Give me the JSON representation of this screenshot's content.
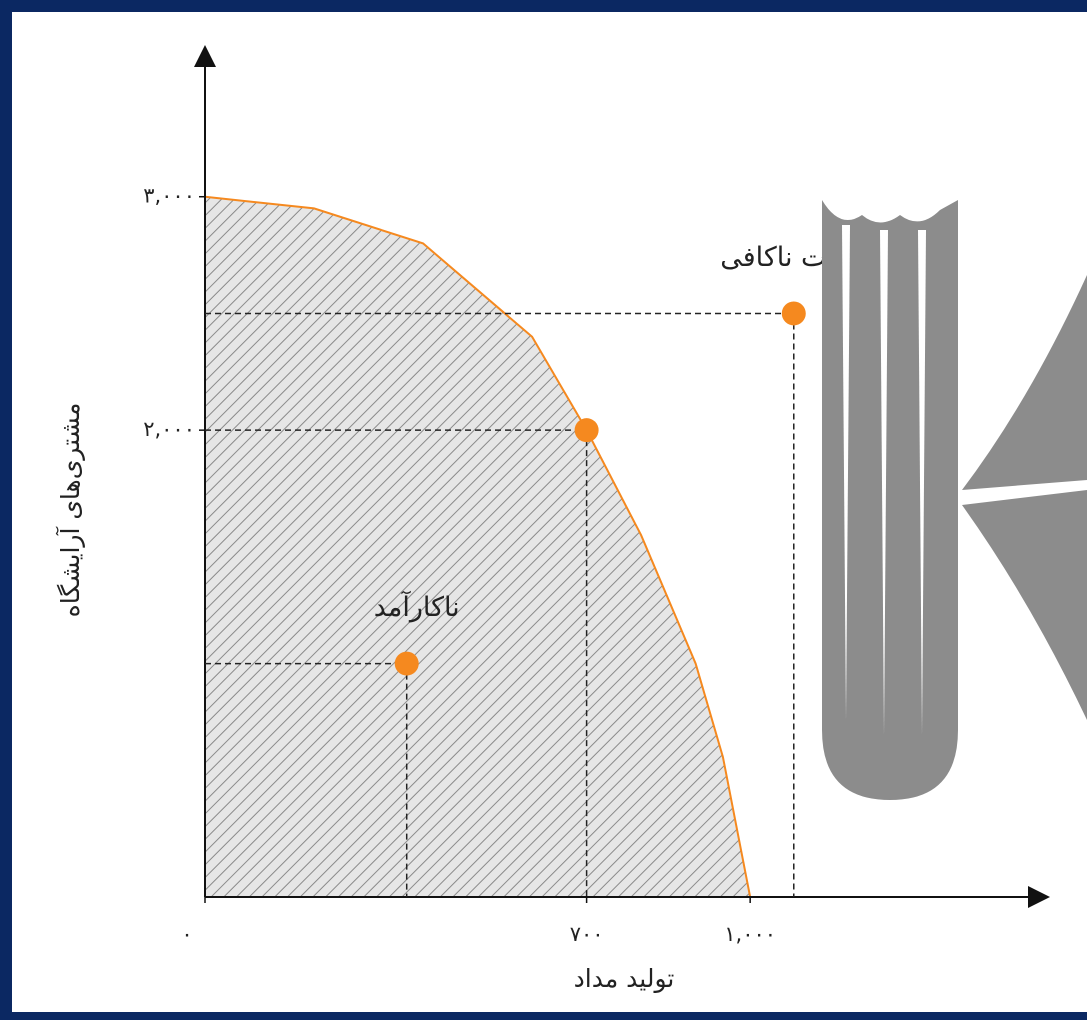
{
  "chart_data": {
    "type": "scatter",
    "x_label": "تولید مداد",
    "y_label": "مشتری‌های آرایشگاه",
    "xlim": [
      0,
      1550
    ],
    "ylim": [
      0,
      3650
    ],
    "xticks": [
      {
        "value": 0,
        "label": "۰"
      },
      {
        "value": 700,
        "label": "۷۰۰"
      },
      {
        "value": 1000,
        "label": "۱,۰۰۰"
      }
    ],
    "yticks": [
      {
        "value": 2000,
        "label": "۲,۰۰۰"
      },
      {
        "value": 3000,
        "label": "۳,۰۰۰"
      }
    ],
    "frontier": {
      "color": "#f5891f",
      "x": [
        0,
        200,
        400,
        600,
        700,
        800,
        900,
        950,
        1000
      ],
      "values": [
        3000,
        2950,
        2800,
        2400,
        2000,
        1550,
        1000,
        600,
        0
      ]
    },
    "series": [
      {
        "color": "#f5891f",
        "x": [
          370,
          700,
          1080
        ],
        "values": [
          1000,
          2000,
          2500
        ]
      }
    ],
    "point_labels": [
      "ناکارآمد",
      null,
      "امکانات ناکافی"
    ]
  }
}
